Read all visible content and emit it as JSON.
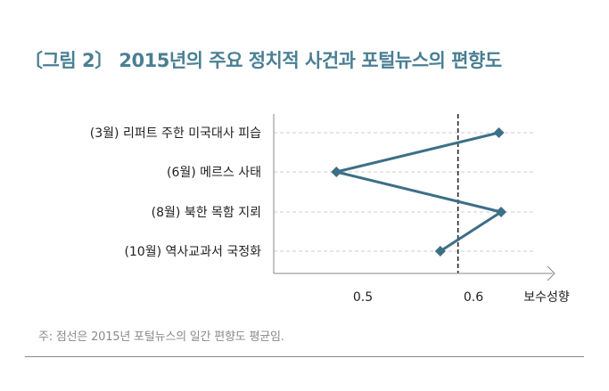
{
  "figure_title": "〔그림 2〕 2015년의 주요 정치적 사건과 포털뉴스의 편향도",
  "footnote": "주: 점선은 2015년 포털뉴스의 일간 편향도 평균임.",
  "colors": {
    "title": "#4a7f93",
    "series": "#3d6f87",
    "axis": "#888888",
    "grid": "#cccccc",
    "mean_line": "#222222",
    "label": "#222222",
    "footnote": "#8a8a8a"
  },
  "chart_data": {
    "type": "line",
    "title": "〔그림 2〕 2015년의 주요 정치적 사건과 포털뉴스의 편향도",
    "orientation": "horizontal",
    "categories": [
      "(3월) 리퍼트 주한 미국대사 피습",
      "(6월) 메르스 사태",
      "(8월) 북한 목함 지뢰",
      "(10월) 역사교과서 국정화"
    ],
    "series": [
      {
        "values": [
          0.623,
          0.476,
          0.625,
          0.57
        ]
      }
    ],
    "xlabel": "보수성향",
    "xlim": [
      0.38,
      0.69
    ],
    "xticks": [
      "0.5",
      "0.6"
    ],
    "xtick_values": [
      0.5,
      0.6
    ],
    "mean_line": {
      "value": 0.586,
      "style": "dashed"
    },
    "grid": "horizontal dashed",
    "legend": "none",
    "marker": "diamond"
  }
}
